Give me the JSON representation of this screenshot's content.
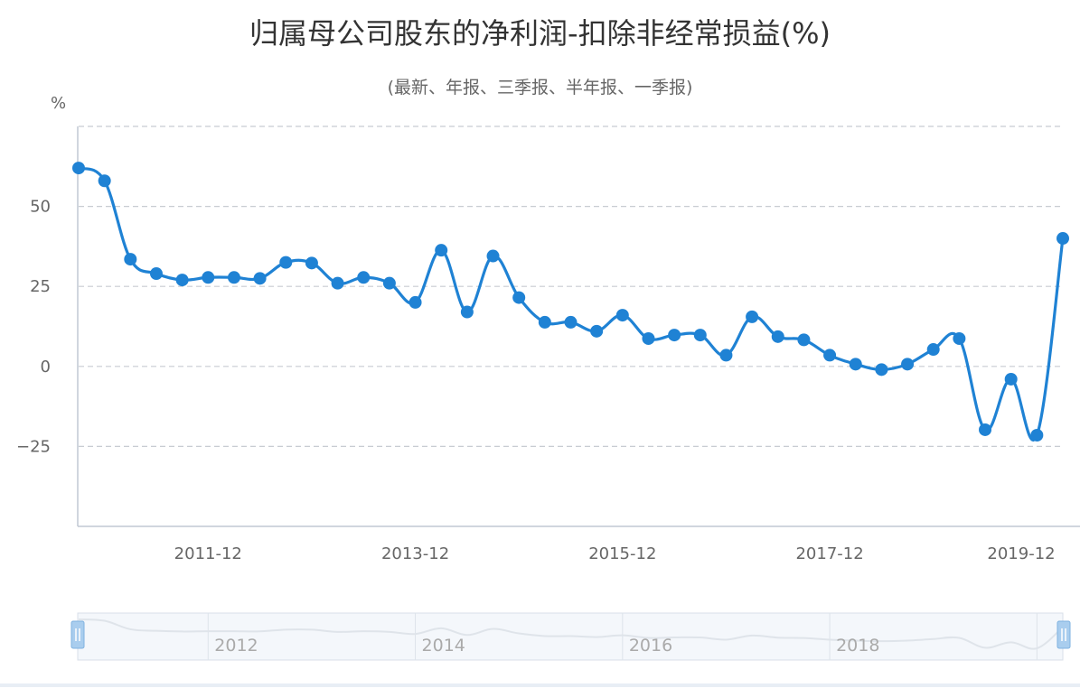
{
  "chart_data": {
    "type": "line",
    "title": "归属母公司股东的净利润-扣除非经常损益(%)",
    "subtitle": "(最新、年报、三季报、半年报、一季报)",
    "ylabel": "%",
    "xlabel": "",
    "ylim": [
      -50,
      75
    ],
    "yticks": [
      "50",
      "25",
      "0",
      "−25"
    ],
    "ytick_values": [
      50,
      25,
      0,
      -25
    ],
    "grid": true,
    "legend": "none",
    "xtick_labels": [
      "2011-12",
      "2013-12",
      "2015-12",
      "2017-12",
      "2019-12"
    ],
    "xtick_indices": [
      5,
      13,
      21,
      29,
      37
    ],
    "navigator_labels": [
      "2012",
      "2014",
      "2016",
      "2018"
    ],
    "series": [
      {
        "color": "#1f82d4",
        "values": [
          62,
          58,
          33.5,
          29,
          27,
          27.8,
          27.8,
          27.5,
          32.5,
          32.3,
          26,
          27.8,
          26,
          20,
          36.3,
          17,
          34.5,
          21.5,
          13.8,
          13.8,
          11,
          16,
          8.7,
          9.8,
          9.8,
          3.5,
          15.5,
          9.3,
          8.3,
          3.5,
          0.7,
          -1,
          0.7,
          5.3,
          8.7,
          -19.8,
          -4,
          -21.5,
          40
        ]
      }
    ]
  }
}
